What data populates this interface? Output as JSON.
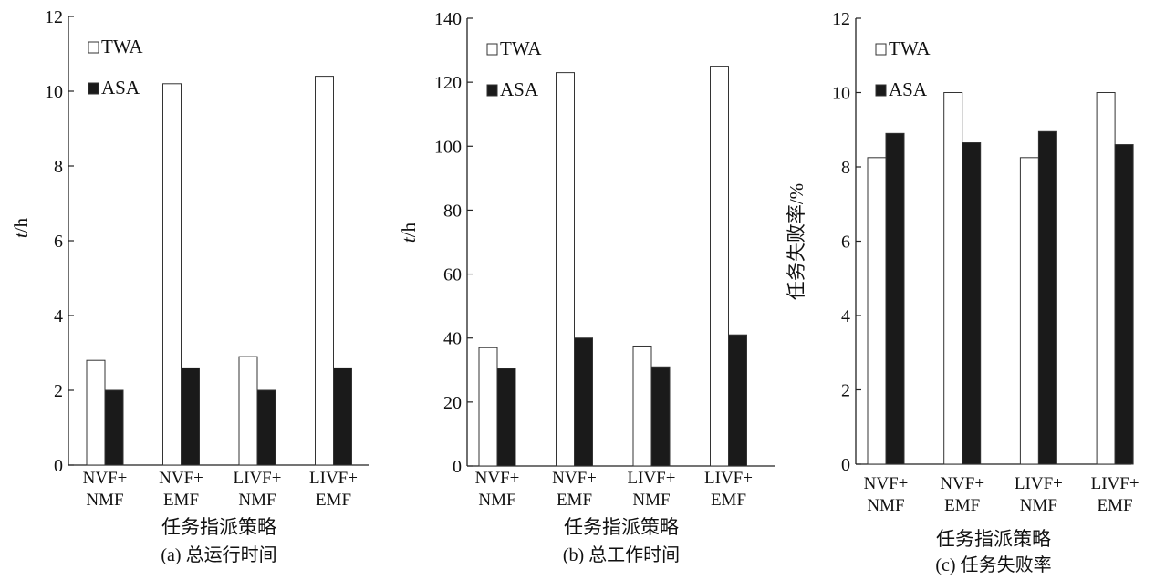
{
  "chart_data": [
    {
      "type": "bar",
      "caption": "(a) 总运行时间",
      "xlabel": "任务指派策略",
      "ylabel_italic": "t",
      "ylabel_rest": "/h",
      "categories": [
        [
          "NVF+",
          "NMF"
        ],
        [
          "NVF+",
          "EMF"
        ],
        [
          "LIVF+",
          "NMF"
        ],
        [
          "LIVF+",
          "EMF"
        ]
      ],
      "series": [
        {
          "name": "TWA",
          "values": [
            2.8,
            10.2,
            2.9,
            10.4
          ],
          "color": "#ffffff"
        },
        {
          "name": "ASA",
          "values": [
            2.0,
            2.6,
            2.0,
            2.6
          ],
          "color": "#1a1a1a"
        }
      ],
      "ylim": [
        0,
        12
      ],
      "yticks": [
        0,
        2,
        4,
        6,
        8,
        10,
        12
      ],
      "legend": "top-left"
    },
    {
      "type": "bar",
      "caption": "(b) 总工作时间",
      "xlabel": "任务指派策略",
      "ylabel_italic": "t",
      "ylabel_rest": "/h",
      "categories": [
        [
          "NVF+",
          "NMF"
        ],
        [
          "NVF+",
          "EMF"
        ],
        [
          "LIVF+",
          "NMF"
        ],
        [
          "LIVF+",
          "EMF"
        ]
      ],
      "series": [
        {
          "name": "TWA",
          "values": [
            37,
            123,
            37.5,
            125
          ],
          "color": "#ffffff"
        },
        {
          "name": "ASA",
          "values": [
            30.5,
            40,
            31,
            41
          ],
          "color": "#1a1a1a"
        }
      ],
      "ylim": [
        0,
        140
      ],
      "yticks": [
        0,
        20,
        40,
        60,
        80,
        100,
        120,
        140
      ],
      "legend": "top-left"
    },
    {
      "type": "bar",
      "caption": "(c) 任务失败率",
      "xlabel": "任务指派策略",
      "ylabel_italic": "",
      "ylabel_rest": "任务失败率/%",
      "categories": [
        [
          "NVF+",
          "NMF"
        ],
        [
          "NVF+",
          "EMF"
        ],
        [
          "LIVF+",
          "NMF"
        ],
        [
          "LIVF+",
          "EMF"
        ]
      ],
      "series": [
        {
          "name": "TWA",
          "values": [
            8.25,
            10.0,
            8.25,
            10.0
          ],
          "color": "#ffffff"
        },
        {
          "name": "ASA",
          "values": [
            8.9,
            8.65,
            8.95,
            8.6
          ],
          "color": "#1a1a1a"
        }
      ],
      "ylim": [
        0,
        12
      ],
      "yticks": [
        0,
        2,
        4,
        6,
        8,
        10,
        12
      ],
      "legend": "top-left"
    }
  ]
}
